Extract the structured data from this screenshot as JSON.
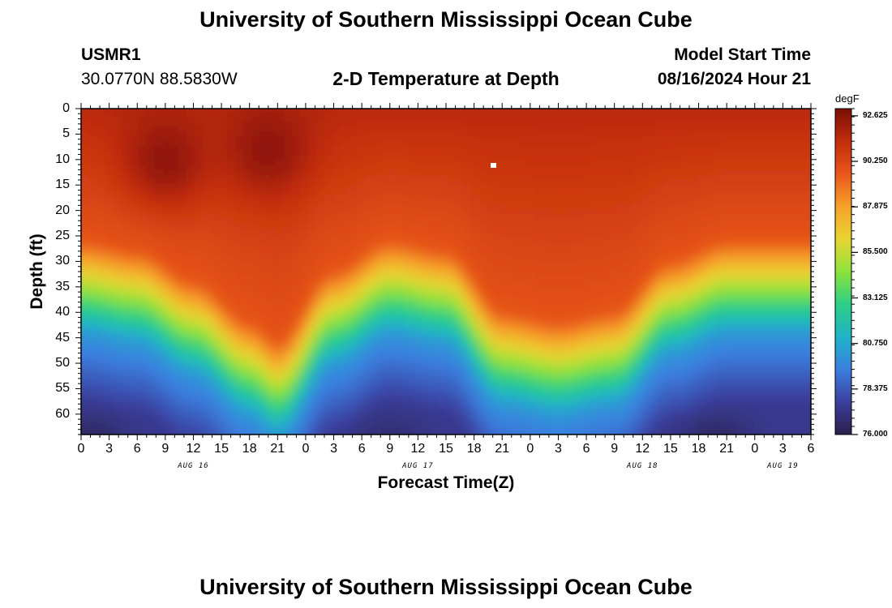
{
  "header": {
    "title": "University of Southern Mississippi Ocean Cube",
    "station_id": "USMR1",
    "coords": "30.0770N  88.5830W",
    "plot_title": "2-D Temperature at Depth",
    "model_start_label": "Model Start Time",
    "model_start_value": "08/16/2024 Hour 21"
  },
  "footer": {
    "title": "University of Southern Mississippi Ocean Cube"
  },
  "colors": {
    "scale": [
      "#2b1f4a",
      "#3b3f9e",
      "#3a7fe0",
      "#1fb4c8",
      "#2ccf86",
      "#8ee23a",
      "#e8d632",
      "#f7a12b",
      "#e8561a",
      "#c22d0c",
      "#7a0d05"
    ]
  },
  "chart_data": {
    "type": "heatmap",
    "xlabel": "Forecast Time(Z)",
    "ylabel": "Depth (ft)",
    "x_range_hours": [
      0,
      78
    ],
    "ylim": [
      0,
      64
    ],
    "y_ticks": [
      "0",
      "5",
      "10",
      "15",
      "20",
      "25",
      "30",
      "35",
      "40",
      "45",
      "50",
      "55",
      "60"
    ],
    "y_tick_values": [
      0,
      5,
      10,
      15,
      20,
      25,
      30,
      35,
      40,
      45,
      50,
      55,
      60
    ],
    "x_ticks": [
      "0",
      "3",
      "6",
      "9",
      "12",
      "15",
      "18",
      "21",
      "0",
      "3",
      "6",
      "9",
      "12",
      "15",
      "18",
      "21",
      "0",
      "3",
      "6",
      "9",
      "12",
      "15",
      "18",
      "21",
      "0",
      "3",
      "6"
    ],
    "date_labels": [
      {
        "text": "AUG 16",
        "hour": 12
      },
      {
        "text": "AUG 17",
        "hour": 36
      },
      {
        "text": "AUG 18",
        "hour": 60
      },
      {
        "text": "AUG 19",
        "hour": 75
      }
    ],
    "colorbar": {
      "unit": "degF",
      "min": 76.0,
      "max": 93.0,
      "labels": [
        "92.625",
        "90.250",
        "87.875",
        "85.500",
        "83.125",
        "80.750",
        "78.375",
        "76.000"
      ],
      "label_values": [
        92.625,
        90.25,
        87.875,
        85.5,
        83.125,
        80.75,
        78.375,
        76.0
      ]
    },
    "surface_temp_range_degF": [
      91.5,
      92.6
    ],
    "thermocline_depth_ft": [
      {
        "hour": 0,
        "depth": 34
      },
      {
        "hour": 6,
        "depth": 36
      },
      {
        "hour": 12,
        "depth": 42
      },
      {
        "hour": 18,
        "depth": 50
      },
      {
        "hour": 21,
        "depth": 54
      },
      {
        "hour": 27,
        "depth": 40
      },
      {
        "hour": 33,
        "depth": 34
      },
      {
        "hour": 39,
        "depth": 36
      },
      {
        "hour": 45,
        "depth": 48
      },
      {
        "hour": 51,
        "depth": 50
      },
      {
        "hour": 57,
        "depth": 48
      },
      {
        "hour": 63,
        "depth": 38
      },
      {
        "hour": 69,
        "depth": 34
      },
      {
        "hour": 78,
        "depth": 34
      }
    ],
    "surface_hot_spots": [
      {
        "hour": 9,
        "depth": 10,
        "value": 92.6
      },
      {
        "hour": 20,
        "depth": 8,
        "value": 92.6
      }
    ],
    "bottom_cold_spots": [
      {
        "hour": 1,
        "depth": 64,
        "value": 76.5
      },
      {
        "hour": 33,
        "depth": 64,
        "value": 76.8
      },
      {
        "hour": 68,
        "depth": 64,
        "value": 76.5
      }
    ]
  }
}
